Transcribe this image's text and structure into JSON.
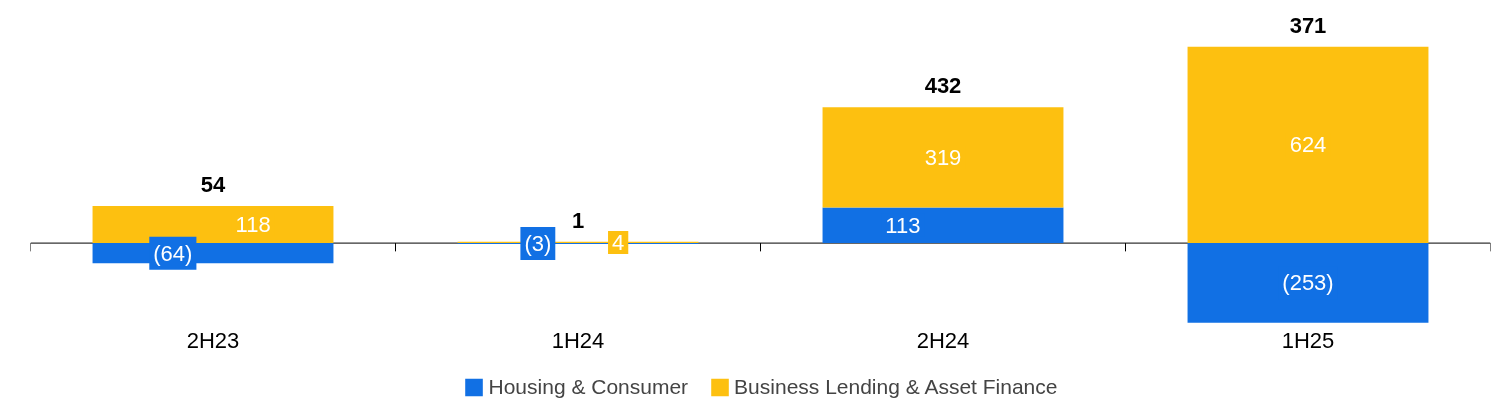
{
  "chart_data": {
    "type": "bar",
    "stacked": true,
    "categories": [
      "2H23",
      "1H24",
      "2H24",
      "1H25"
    ],
    "series": [
      {
        "name": "Housing & Consumer",
        "color": "#1170e4",
        "values": [
          -64,
          -3,
          113,
          -253
        ],
        "value_labels": [
          "(64)",
          "(3)",
          "113",
          "(253)"
        ]
      },
      {
        "name": "Business Lending & Asset Finance",
        "color": "#fdc010",
        "values": [
          118,
          4,
          319,
          624
        ],
        "value_labels": [
          "118",
          "4",
          "319",
          "624"
        ]
      }
    ],
    "totals": [
      "54",
      "1",
      "432",
      "371"
    ],
    "legend": "bottom"
  }
}
